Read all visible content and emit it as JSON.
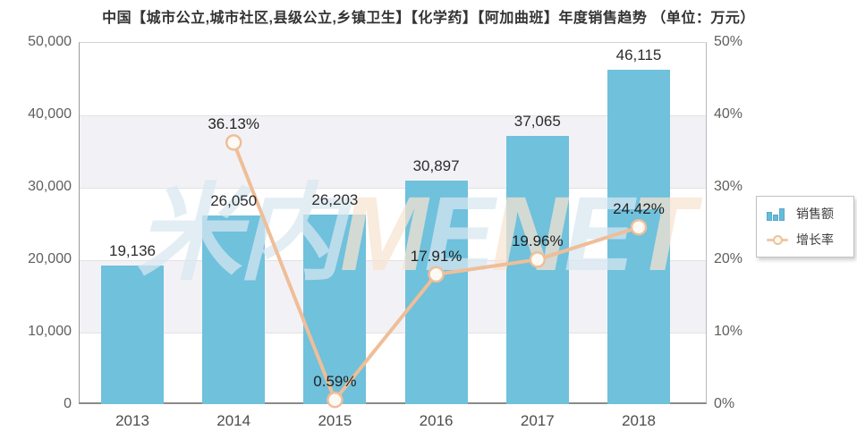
{
  "title": "中国【城市公立,城市社区,县级公立,乡镇卫生】【化学药】【阿加曲班】年度销售趋势 （单位：万元）",
  "watermark": {
    "text": "米内MENET",
    "segments": [
      {
        "ch": "米",
        "tone": "blue"
      },
      {
        "ch": "内",
        "tone": "blue"
      },
      {
        "ch": "M",
        "tone": "peach"
      },
      {
        "ch": "E",
        "tone": "blue"
      },
      {
        "ch": "N",
        "tone": "peach"
      },
      {
        "ch": "E",
        "tone": "blue"
      },
      {
        "ch": "T",
        "tone": "peach"
      }
    ]
  },
  "legend": {
    "items": [
      {
        "label": "销售额",
        "icon": "bar-chart-icon",
        "type": "bar"
      },
      {
        "label": "增长率",
        "icon": "line-marker-icon",
        "type": "line"
      }
    ]
  },
  "chart_data": {
    "type": "bar",
    "subtype": "bar-line-combo",
    "title": "中国【城市公立,城市社区,县级公立,乡镇卫生】【化学药】【阿加曲班】年度销售趋势 （单位：万元）",
    "unit": "万元",
    "categories": [
      "2013",
      "2014",
      "2015",
      "2016",
      "2017",
      "2018"
    ],
    "series": [
      {
        "name": "销售额",
        "type": "bar",
        "axis": "left",
        "color": "#6FC1DC",
        "values": [
          19136,
          26050,
          26203,
          30897,
          37065,
          46115
        ],
        "labels": [
          "19,136",
          "26,050",
          "26,203",
          "30,897",
          "37,065",
          "46,115"
        ]
      },
      {
        "name": "增长率",
        "type": "line",
        "axis": "right",
        "color": "#EFBE98",
        "x": [
          "2014",
          "2015",
          "2016",
          "2017",
          "2018"
        ],
        "values": [
          36.13,
          0.59,
          17.91,
          19.96,
          24.42
        ],
        "labels": [
          "36.13%",
          "0.59%",
          "17.91%",
          "19.96%",
          "24.42%"
        ]
      }
    ],
    "left_axis": {
      "min": 0,
      "max": 50000,
      "ticks": [
        "0",
        "10,000",
        "20,000",
        "30,000",
        "40,000",
        "50,000"
      ]
    },
    "right_axis": {
      "min": 0,
      "max": 50,
      "ticks": [
        "0%",
        "10%",
        "20%",
        "30%",
        "40%",
        "50%"
      ]
    },
    "grid": true,
    "alternating_bands": true,
    "legend_position": "right"
  }
}
